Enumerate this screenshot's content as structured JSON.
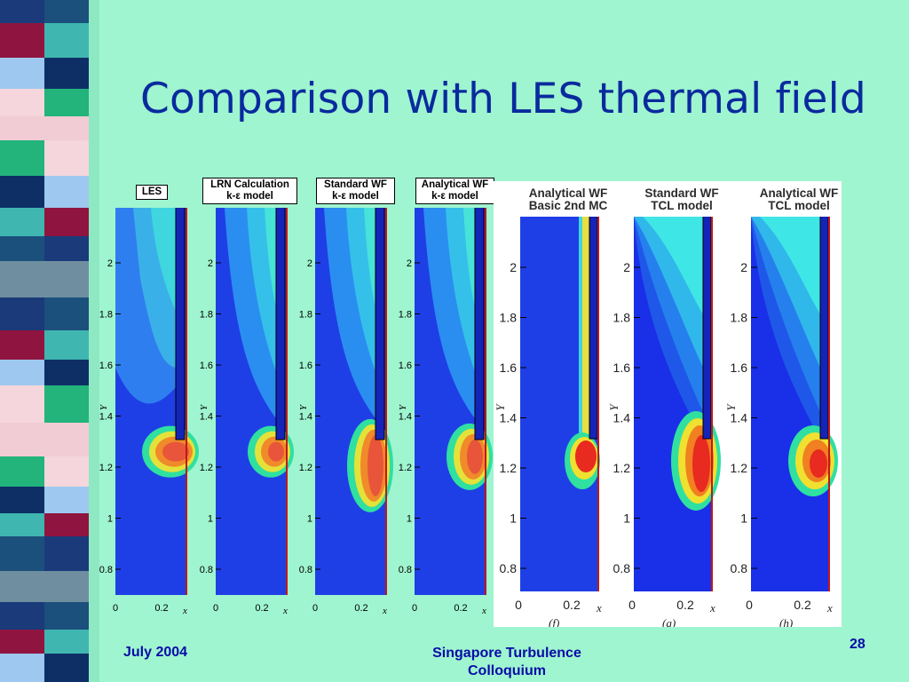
{
  "slide": {
    "title": "Comparison with LES thermal field",
    "footer_date": "July 2004",
    "footer_event": "Singapore Turbulence\nColloquium",
    "page_number": "28",
    "background": "#9ff5cf",
    "title_color": "#0a2a9e"
  },
  "small_panels": [
    {
      "label_lines": [
        "LES"
      ]
    },
    {
      "label_lines": [
        "LRN Calculation",
        "k-ε model"
      ]
    },
    {
      "label_lines": [
        "Standard WF",
        "k-ε model"
      ]
    },
    {
      "label_lines": [
        "Analytical WF",
        "k-ε model"
      ]
    }
  ],
  "small_axes": {
    "y_ticks": [
      "0.8",
      "1",
      "1.2",
      "1.4",
      "1.6",
      "1.8",
      "2"
    ],
    "x_ticks": [
      "0",
      "0.2"
    ],
    "x_label": "x",
    "y_label": "Y"
  },
  "big_panels": [
    {
      "title_lines": [
        "Analytical WF",
        "Basic 2nd MC"
      ],
      "tag": "(f)"
    },
    {
      "title_lines": [
        "Standard WF",
        "TCL model"
      ],
      "tag": "(g)"
    },
    {
      "title_lines": [
        "Analytical WF",
        "TCL model"
      ],
      "tag": "(h)"
    }
  ],
  "big_axes": {
    "y_ticks": [
      "0.8",
      "1",
      "1.2",
      "1.4",
      "1.6",
      "1.8",
      "2"
    ],
    "x_ticks": [
      "0",
      "0.2"
    ],
    "x_label": "x",
    "y_label": "Y"
  }
}
